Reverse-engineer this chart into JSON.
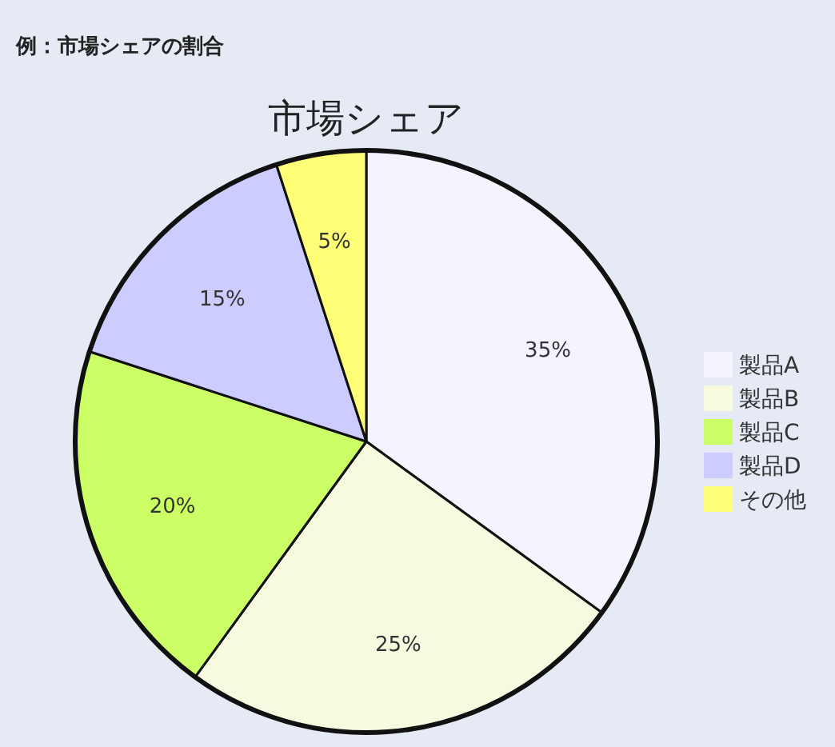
{
  "chart_data": {
    "type": "pie",
    "title": "市場シェア",
    "annotations": [
      "例：市場シェアの割合"
    ],
    "categories": [
      "製品A",
      "製品B",
      "製品C",
      "製品D",
      "その他"
    ],
    "values": [
      35,
      25,
      20,
      15,
      5
    ],
    "colors": [
      "#f4f4ff",
      "#f8fae0",
      "#ccff66",
      "#ccccff",
      "#ffff77"
    ],
    "data_labels": true,
    "value_labels": [
      "35%",
      "25%",
      "20%",
      "15%",
      "5%"
    ],
    "legend": "right"
  }
}
